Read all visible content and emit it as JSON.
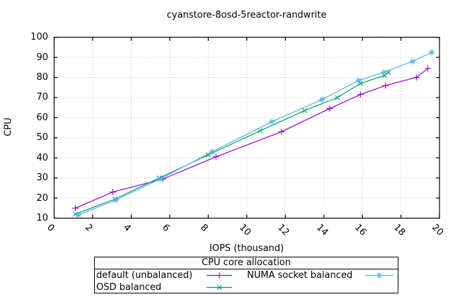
{
  "chart_data": {
    "type": "line",
    "title": "cyanstore-8osd-5reactor-randwrite",
    "xlabel": "IOPS (thousand)",
    "ylabel": "CPU",
    "xlim": [
      0,
      20
    ],
    "ylim": [
      10,
      100
    ],
    "xticks": [
      0,
      2,
      4,
      6,
      8,
      10,
      12,
      14,
      16,
      18,
      20
    ],
    "yticks": [
      10,
      20,
      30,
      40,
      50,
      60,
      70,
      80,
      90,
      100
    ],
    "grid": true,
    "grid_style": "dotted",
    "legend_position": "below-plot",
    "series": [
      {
        "name": "default (unbalanced)",
        "color": "#9400d3",
        "marker": "plus",
        "points": [
          [
            1.1,
            15
          ],
          [
            3.05,
            23
          ],
          [
            5.65,
            29.5
          ],
          [
            8.4,
            40.5
          ],
          [
            11.8,
            53
          ],
          [
            14.3,
            64.5
          ],
          [
            15.9,
            71.5
          ],
          [
            17.2,
            76
          ],
          [
            18.8,
            80
          ],
          [
            19.4,
            84.5
          ]
        ]
      },
      {
        "name": "OSD balanced",
        "color": "#009e73",
        "marker": "cross",
        "points": [
          [
            1.1,
            12
          ],
          [
            3.15,
            19.5
          ],
          [
            5.45,
            30
          ],
          [
            8.0,
            41.5
          ],
          [
            10.7,
            53.5
          ],
          [
            13.0,
            63.5
          ],
          [
            14.7,
            70
          ],
          [
            15.9,
            77
          ],
          [
            17.15,
            81
          ],
          [
            17.35,
            82.5
          ]
        ]
      },
      {
        "name": "NUMA socket balanced",
        "color": "#56b4e9",
        "marker": "asterisk",
        "points": [
          [
            1.25,
            11.5
          ],
          [
            3.2,
            19
          ],
          [
            5.5,
            29.5
          ],
          [
            8.2,
            43
          ],
          [
            11.3,
            58
          ],
          [
            13.9,
            69
          ],
          [
            15.8,
            78.5
          ],
          [
            17.1,
            82.5
          ],
          [
            18.6,
            88
          ],
          [
            19.6,
            92.5
          ]
        ]
      }
    ]
  },
  "legend": {
    "title": "CPU core allocation",
    "grid": [
      [
        "default (unbalanced)",
        "NUMA socket balanced"
      ],
      [
        "OSD balanced",
        ""
      ]
    ]
  },
  "colors": {
    "background": "#ffffff",
    "border": "#000000",
    "grid": "#b8b8b8",
    "text": "#000000",
    "series_default": "#9400d3",
    "series_osd": "#009e73",
    "series_numa": "#56b4e9"
  }
}
